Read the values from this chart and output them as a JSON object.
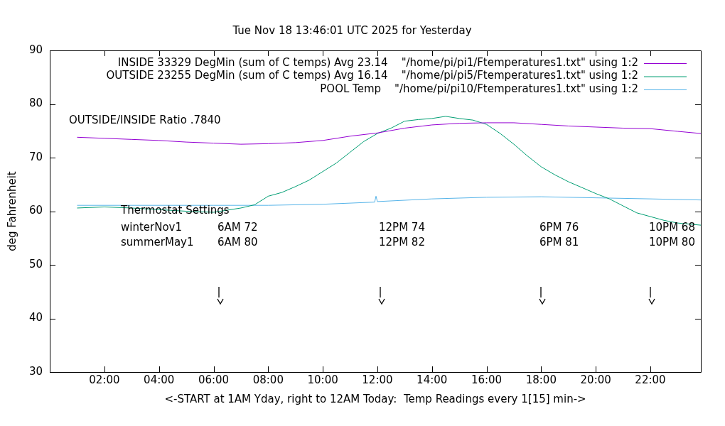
{
  "chart_data": {
    "type": "line",
    "title": "Tue Nov 18 13:46:01 UTC 2025 for Yesterday",
    "xlabel": "<-START at 1AM Yday, right to 12AM Today:  Temp Readings every 1[15] min->",
    "ylabel": "deg Fahrenheit",
    "xlim": [
      0,
      23.85
    ],
    "ylim": [
      30,
      90
    ],
    "xticks": [
      {
        "value": 2,
        "label": "02:00"
      },
      {
        "value": 4,
        "label": "04:00"
      },
      {
        "value": 6,
        "label": "06:00"
      },
      {
        "value": 8,
        "label": "08:00"
      },
      {
        "value": 10,
        "label": "10:00"
      },
      {
        "value": 12,
        "label": "12:00"
      },
      {
        "value": 14,
        "label": "14:00"
      },
      {
        "value": 16,
        "label": "16:00"
      },
      {
        "value": 18,
        "label": "18:00"
      },
      {
        "value": 20,
        "label": "20:00"
      },
      {
        "value": 22,
        "label": "22:00"
      }
    ],
    "yticks": [
      30,
      40,
      50,
      60,
      70,
      80,
      90
    ],
    "grid": false,
    "legend": "top left",
    "marker": "none",
    "line_style": "solid",
    "series": [
      {
        "name": "INSIDE 33329 DegMin (sum of C temps) Avg 23.14    \"/home/pi/pi1/Ftemperatures1.txt\" using 1:2",
        "color": "#9400d3",
        "x": [
          1,
          2,
          3,
          4,
          5,
          6,
          7,
          8,
          9,
          10,
          11,
          12,
          13,
          14,
          15,
          16,
          17,
          18,
          19,
          20,
          21,
          22,
          23,
          23.85
        ],
        "values": [
          73.8,
          73.6,
          73.4,
          73.2,
          72.9,
          72.7,
          72.5,
          72.6,
          72.8,
          73.2,
          74.0,
          74.6,
          75.5,
          76.1,
          76.4,
          76.5,
          76.5,
          76.2,
          75.9,
          75.7,
          75.5,
          75.4,
          74.9,
          74.5
        ]
      },
      {
        "name": "OUTSIDE 23255 DegMin (sum of C temps) Avg 16.14    \"/home/pi/pi5/Ftemperatures1.txt\" using 1:2",
        "color": "#009e73",
        "x": [
          1,
          2,
          3,
          4,
          5,
          6,
          6.5,
          7,
          7.5,
          8,
          8.5,
          9,
          9.5,
          10,
          10.5,
          11,
          11.5,
          12,
          12.5,
          13,
          13.5,
          14,
          14.5,
          15,
          15.5,
          16,
          16.5,
          17,
          17.5,
          18,
          18.5,
          19,
          19.5,
          20,
          20.5,
          21,
          21.5,
          22,
          22.5,
          23,
          23.85
        ],
        "values": [
          60.6,
          60.8,
          60.6,
          60.3,
          60.0,
          59.8,
          60.2,
          60.6,
          61.2,
          62.8,
          63.5,
          64.6,
          65.8,
          67.4,
          69.0,
          71.0,
          73.0,
          74.5,
          75.5,
          76.8,
          77.1,
          77.3,
          77.7,
          77.3,
          77.0,
          76.2,
          74.5,
          72.5,
          70.3,
          68.3,
          66.8,
          65.5,
          64.4,
          63.3,
          62.3,
          61.0,
          59.7,
          59.0,
          58.3,
          57.8,
          57.4
        ]
      },
      {
        "name": "POOL Temp    \"/home/pi/pi10/Ftemperatures1.txt\" using 1:2",
        "color": "#56b4e9",
        "x": [
          1,
          6,
          8,
          10,
          11.9,
          11.95,
          12,
          14,
          16,
          18,
          20,
          22,
          23.85
        ],
        "values": [
          61.1,
          61.1,
          61.1,
          61.3,
          61.7,
          62.8,
          61.8,
          62.3,
          62.6,
          62.7,
          62.5,
          62.3,
          62.1
        ]
      }
    ],
    "annotations": [
      "OUTSIDE/INSIDE Ratio .7840",
      "Thermostat Settings",
      "winterNov1",
      "summerMay1",
      "6AM 72",
      "6AM 80",
      "12PM 74",
      "12PM 82",
      "6PM 76",
      "6PM 81",
      "10PM 68",
      "10PM 80"
    ]
  }
}
